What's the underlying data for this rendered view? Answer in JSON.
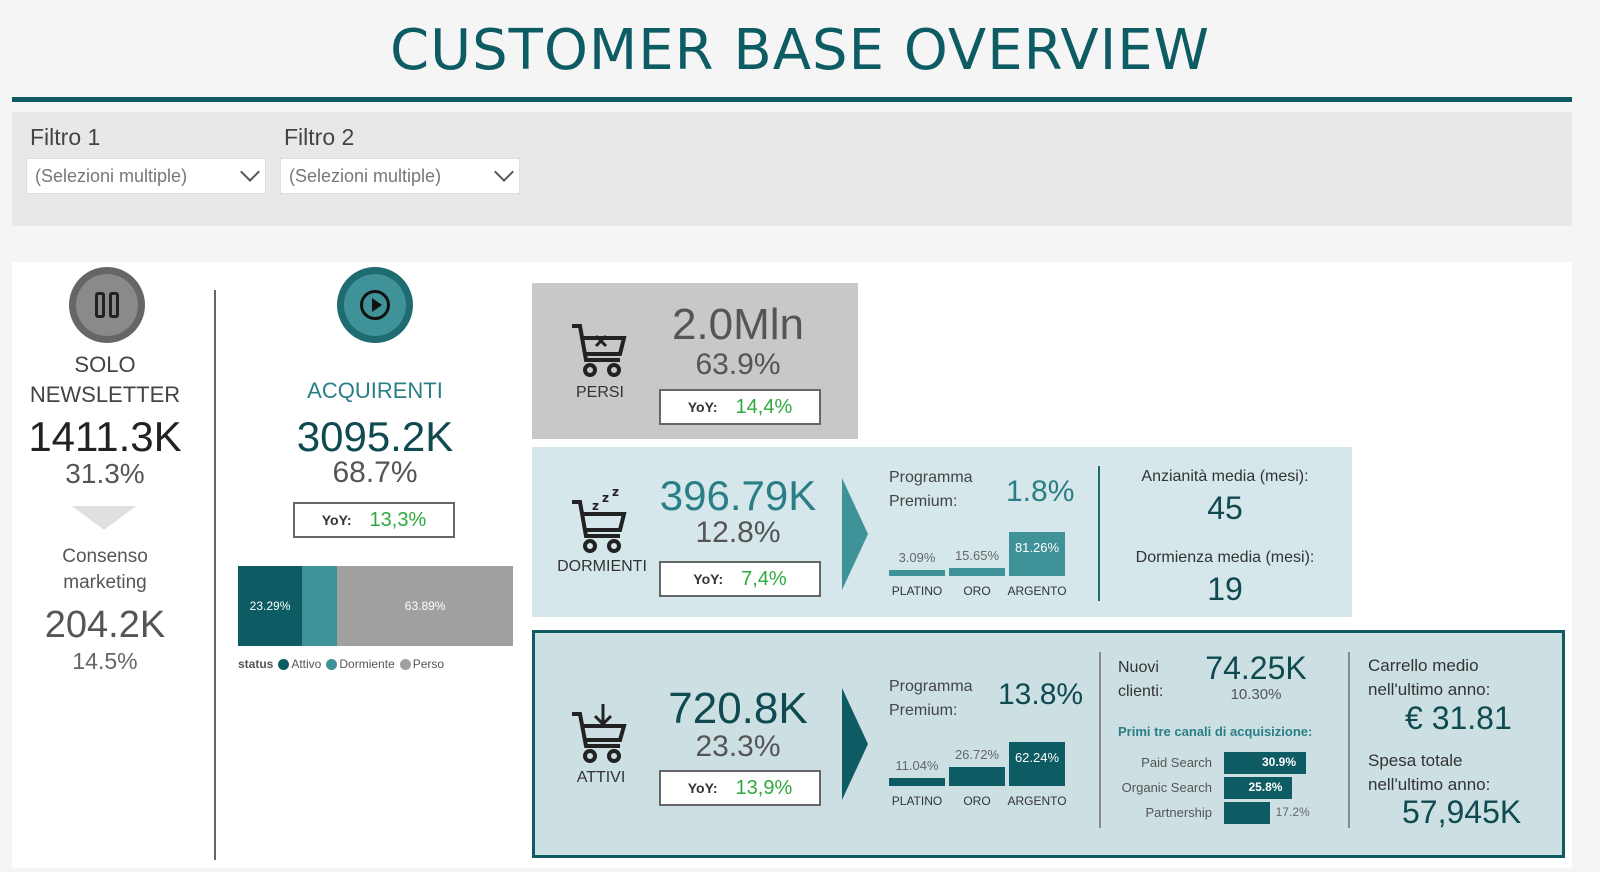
{
  "header": {
    "title": "CUSTOMER BASE OVERVIEW"
  },
  "filters": [
    {
      "label": "Filtro 1",
      "value": "(Selezioni multiple)"
    },
    {
      "label": "Filtro 2",
      "value": "(Selezioni multiple)"
    }
  ],
  "solo_newsletter": {
    "line1": "SOLO",
    "line2": "NEWSLETTER",
    "value": "1411.3K",
    "pct": "31.3%",
    "consenso_line1": "Consenso",
    "consenso_line2": "marketing",
    "consenso_value": "204.2K",
    "consenso_pct": "14.5%"
  },
  "acquirenti": {
    "label": "ACQUIRENTI",
    "value": "3095.2K",
    "pct": "68.7%",
    "yoy_label": "YoY:",
    "yoy_value": "13,3%",
    "status_chart": {
      "legend_title": "status",
      "segments": [
        {
          "name": "Attivo",
          "value": 23.29,
          "label": "23.29%",
          "color": "#0e5c63"
        },
        {
          "name": "Dormiente",
          "value": 12.82,
          "label": "",
          "color": "#3e9298"
        },
        {
          "name": "Perso",
          "value": 63.89,
          "label": "63.89%",
          "color": "#a0a0a0"
        }
      ]
    }
  },
  "persi": {
    "label": "PERSI",
    "value": "2.0Mln",
    "pct": "63.9%",
    "yoy_label": "YoY:",
    "yoy_value": "14,4%"
  },
  "dormienti": {
    "label": "DORMIENTI",
    "value": "396.79K",
    "pct": "12.8%",
    "yoy_label": "YoY:",
    "yoy_value": "7,4%",
    "premium_line1": "Programma",
    "premium_line2": "Premium:",
    "premium_value": "1.8%",
    "tiers": [
      {
        "name": "PLATINO",
        "label": "3.09%",
        "value": 3.09
      },
      {
        "name": "ORO",
        "label": "15.65%",
        "value": 15.65
      },
      {
        "name": "ARGENTO",
        "label": "81.26%",
        "value": 81.26
      }
    ],
    "anzianita_label": "Anzianità media (mesi):",
    "anzianita_value": "45",
    "dormienza_label": "Dormienza media (mesi):",
    "dormienza_value": "19"
  },
  "attivi": {
    "label": "ATTIVI",
    "value": "720.8K",
    "pct": "23.3%",
    "yoy_label": "YoY:",
    "yoy_value": "13,9%",
    "premium_line1": "Programma",
    "premium_line2": "Premium:",
    "premium_value": "13.8%",
    "tiers": [
      {
        "name": "PLATINO",
        "label": "11.04%",
        "value": 11.04
      },
      {
        "name": "ORO",
        "label": "26.72%",
        "value": 26.72
      },
      {
        "name": "ARGENTO",
        "label": "62.24%",
        "value": 62.24
      }
    ],
    "nuovi_line1": "Nuovi",
    "nuovi_line2": "clienti:",
    "nuovi_value": "74.25K",
    "nuovi_pct": "10.30%",
    "canali_title": "Primi tre canali di acquisizione:",
    "canali": [
      {
        "name": "Paid Search",
        "label": "30.9%",
        "value": 30.9
      },
      {
        "name": "Organic Search",
        "label": "25.8%",
        "value": 25.8
      },
      {
        "name": "Partnership",
        "label": "17.2%",
        "value": 17.2
      }
    ],
    "carrello_line1": "Carrello medio",
    "carrello_line2": "nell'ultimo anno:",
    "carrello_value": "€ 31.81",
    "spesa_line1": "Spesa totale",
    "spesa_line2": "nell'ultimo anno:",
    "spesa_value": "57,945K"
  }
}
